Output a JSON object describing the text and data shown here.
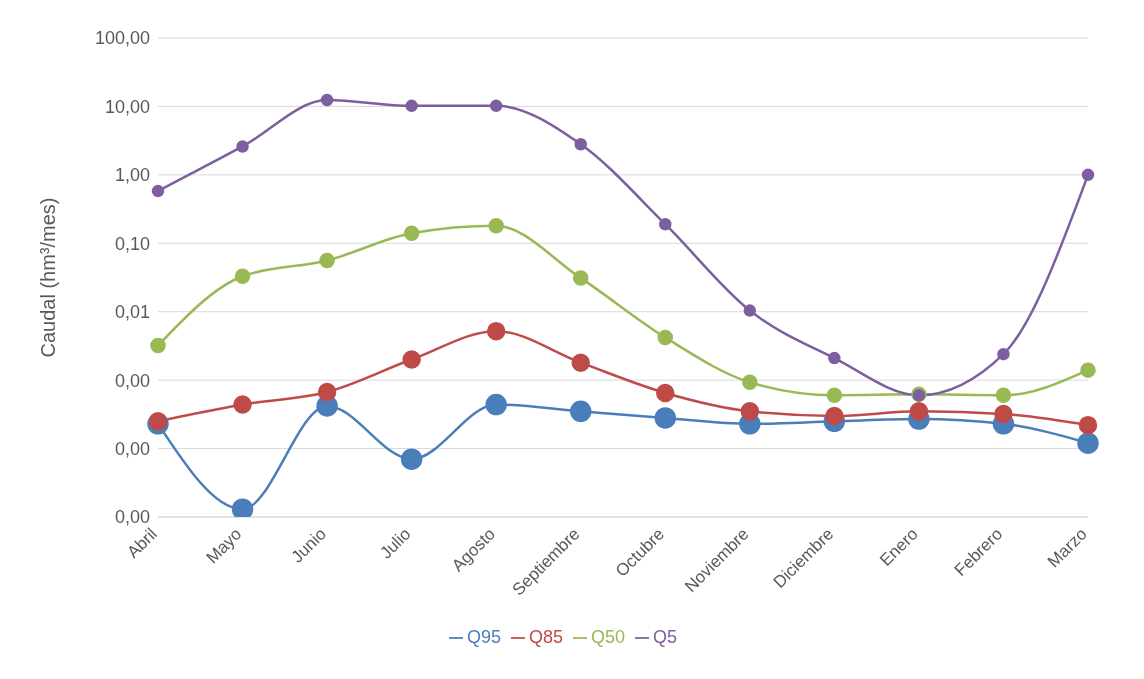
{
  "chart_data": {
    "type": "line",
    "ylabel": "Caudal (hm³/mes)",
    "categories": [
      "Abril",
      "Mayo",
      "Junio",
      "Julio",
      "Agosto",
      "Septiembre",
      "Octubre",
      "Noviembre",
      "Diciembre",
      "Enero",
      "Febrero",
      "Marzo"
    ],
    "series": [
      {
        "name": "Q95",
        "color": "#4a7ebb",
        "values": [
          0.00023,
          1.3e-05,
          0.00042,
          7e-05,
          0.00044,
          0.00035,
          0.00028,
          0.00023,
          0.00025,
          0.00027,
          0.00023,
          0.00012
        ]
      },
      {
        "name": "Q85",
        "color": "#be4b48",
        "values": [
          0.00025,
          0.00044,
          0.00067,
          0.002,
          0.0052,
          0.0018,
          0.00065,
          0.00035,
          0.0003,
          0.00035,
          0.00032,
          0.00022
        ]
      },
      {
        "name": "Q50",
        "color": "#98b954",
        "values": [
          0.0032,
          0.033,
          0.056,
          0.14,
          0.18,
          0.031,
          0.0042,
          0.00093,
          0.0006,
          0.00062,
          0.0006,
          0.0014
        ]
      },
      {
        "name": "Q5",
        "color": "#7d5fa0",
        "values": [
          0.58,
          2.6,
          12.4,
          10.2,
          10.2,
          2.8,
          0.19,
          0.0104,
          0.0021,
          0.0006,
          0.0024,
          1.0
        ]
      }
    ],
    "log": "y",
    "ylim": [
      1e-05,
      100
    ],
    "yticks": [
      {
        "value": 1e-05,
        "label": "0,00"
      },
      {
        "value": 0.0001,
        "label": "0,00"
      },
      {
        "value": 0.001,
        "label": "0,00"
      },
      {
        "value": 0.01,
        "label": "0,01"
      },
      {
        "value": 0.1,
        "label": "0,10"
      },
      {
        "value": 1,
        "label": "1,00"
      },
      {
        "value": 10,
        "label": "10,00"
      },
      {
        "value": 100,
        "label": "100,00"
      }
    ],
    "grid": "y",
    "legend": "bottom",
    "marker": "circle",
    "line_style": "solid"
  }
}
